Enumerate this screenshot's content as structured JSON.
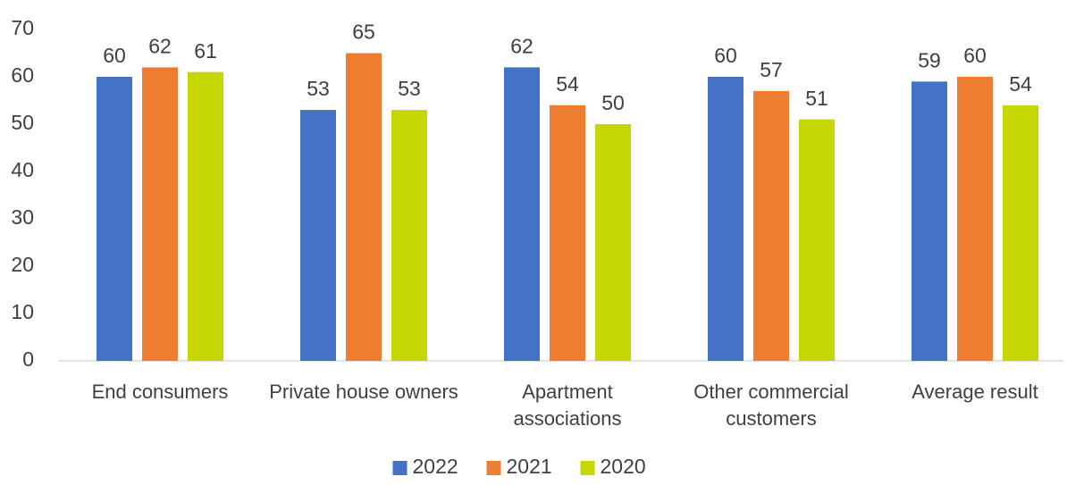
{
  "chart_data": {
    "type": "bar",
    "categories": [
      "End consumers",
      "Private house owners",
      "Apartment associations",
      "Other commercial customers",
      "Average result"
    ],
    "series": [
      {
        "name": "2022",
        "color": "#4472c4",
        "values": [
          60,
          53,
          62,
          60,
          59
        ]
      },
      {
        "name": "2021",
        "color": "#ed7d31",
        "values": [
          62,
          65,
          54,
          57,
          60
        ]
      },
      {
        "name": "2020",
        "color": "#c5d600",
        "values": [
          61,
          53,
          50,
          51,
          54
        ]
      }
    ],
    "ylim": [
      0,
      70
    ],
    "yticks": [
      0,
      10,
      20,
      30,
      40,
      50,
      60,
      70
    ],
    "grid": false,
    "legend": "bottom"
  }
}
